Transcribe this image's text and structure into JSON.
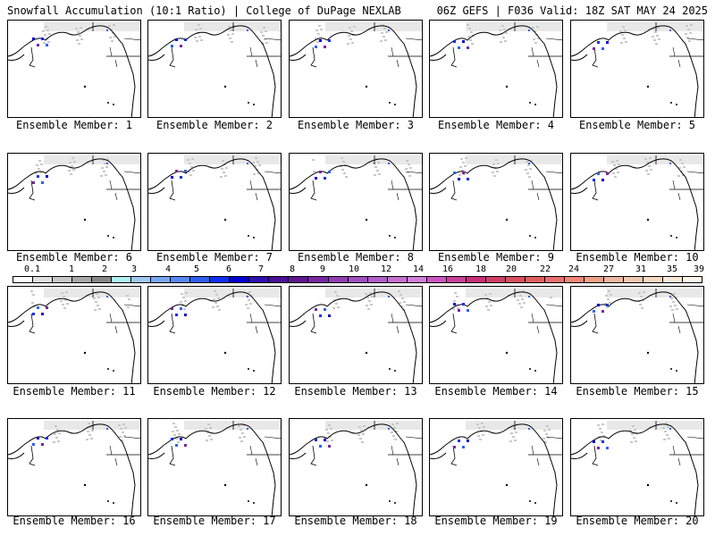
{
  "header": {
    "left": "Snowfall Accumulation (10:1 Ratio) | College of DuPage NEXLAB",
    "right": "06Z GEFS | F036 Valid: 18Z SAT MAY 24 2025"
  },
  "panels": [
    {
      "label": "Ensemble Member: 1"
    },
    {
      "label": "Ensemble Member: 2"
    },
    {
      "label": "Ensemble Member: 3"
    },
    {
      "label": "Ensemble Member: 4"
    },
    {
      "label": "Ensemble Member: 5"
    },
    {
      "label": "Ensemble Member: 6"
    },
    {
      "label": "Ensemble Member: 7"
    },
    {
      "label": "Ensemble Member: 8"
    },
    {
      "label": "Ensemble Member: 9"
    },
    {
      "label": "Ensemble Member: 10"
    },
    {
      "label": "Ensemble Member: 11"
    },
    {
      "label": "Ensemble Member: 12"
    },
    {
      "label": "Ensemble Member: 13"
    },
    {
      "label": "Ensemble Member: 14"
    },
    {
      "label": "Ensemble Member: 15"
    },
    {
      "label": "Ensemble Member: 16"
    },
    {
      "label": "Ensemble Member: 17"
    },
    {
      "label": "Ensemble Member: 18"
    },
    {
      "label": "Ensemble Member: 19"
    },
    {
      "label": "Ensemble Member: 20"
    }
  ],
  "colorbar": {
    "labels": [
      "0.1",
      "1",
      "2",
      "3",
      "4",
      "5",
      "6",
      "7",
      "8",
      "9",
      "10",
      "12",
      "14",
      "16",
      "18",
      "20",
      "22",
      "24",
      "27",
      "31",
      "35",
      "39"
    ],
    "colors": [
      "#ffffff",
      "#e0e0e0",
      "#c8c8c8",
      "#a8a8a8",
      "#888888",
      "#b0f0f0",
      "#a0c8f0",
      "#78a8f0",
      "#5888f0",
      "#3060f0",
      "#1030f0",
      "#0000d0",
      "#3010b0",
      "#4a1098",
      "#601890",
      "#7828a0",
      "#9040b0",
      "#a050c0",
      "#b060c8",
      "#c870d0",
      "#d080d8",
      "#c858c0",
      "#c84098",
      "#c83078",
      "#d04068",
      "#d85060",
      "#e06060",
      "#e87070",
      "#f08878",
      "#f0a088",
      "#f0b8a0",
      "#f0c8b0",
      "#f8d8c0",
      "#f8e8d8",
      "#fff4e8"
    ]
  }
}
